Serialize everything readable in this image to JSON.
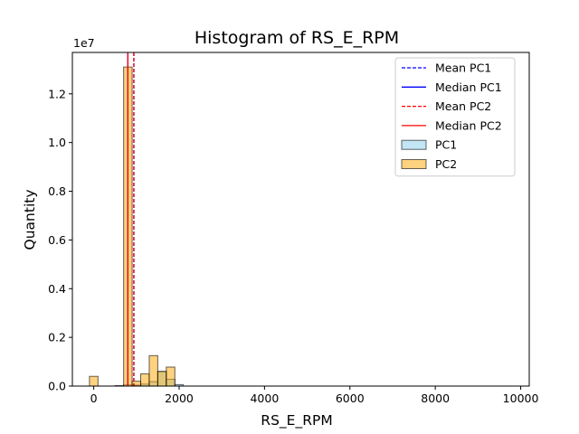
{
  "chart_data": {
    "type": "histogram",
    "title": "Histogram of RS_E_RPM",
    "xlabel": "RS_E_RPM",
    "ylabel": "Quantity",
    "y_offset_label": "1e7",
    "xlim": [
      -500,
      10200
    ],
    "ylim": [
      0,
      13700000
    ],
    "x_ticks": [
      0,
      2000,
      4000,
      6000,
      8000,
      10000
    ],
    "y_ticks": [
      0,
      2000000,
      4000000,
      6000000,
      8000000,
      10000000,
      12000000
    ],
    "y_tick_labels": [
      "0.0",
      "0.2",
      "0.4",
      "0.6",
      "0.8",
      "1.0",
      "1.2"
    ],
    "grid": false,
    "legend_position": "upper right",
    "legend": [
      {
        "label": "Mean PC1",
        "kind": "dashed-line",
        "color": "#0000ff"
      },
      {
        "label": "Median PC1",
        "kind": "solid-line",
        "color": "#0000ff"
      },
      {
        "label": "Mean PC2",
        "kind": "dashed-line",
        "color": "#ff0000"
      },
      {
        "label": "Median PC2",
        "kind": "solid-line",
        "color": "#ff0000"
      },
      {
        "label": "PC1",
        "kind": "patch",
        "color": "#87ceeb"
      },
      {
        "label": "PC2",
        "kind": "patch",
        "color": "#ffa500"
      }
    ],
    "bin_width": 200,
    "series": [
      {
        "name": "PC1",
        "color": "#87ceeb",
        "bins": [
          {
            "x0": 500,
            "count": 20000
          },
          {
            "x0": 700,
            "count": 50000
          },
          {
            "x0": 900,
            "count": 40000
          },
          {
            "x0": 1100,
            "count": 80000
          },
          {
            "x0": 1300,
            "count": 180000
          },
          {
            "x0": 1500,
            "count": 600000
          },
          {
            "x0": 1700,
            "count": 280000
          },
          {
            "x0": 1900,
            "count": 60000
          }
        ]
      },
      {
        "name": "PC2",
        "color": "#ffa500",
        "bins": [
          {
            "x0": -100,
            "count": 400000
          },
          {
            "x0": 700,
            "count": 13100000
          },
          {
            "x0": 900,
            "count": 200000
          },
          {
            "x0": 1100,
            "count": 500000
          },
          {
            "x0": 1300,
            "count": 1250000
          },
          {
            "x0": 1500,
            "count": 600000
          },
          {
            "x0": 1700,
            "count": 780000
          }
        ]
      }
    ],
    "reference_lines": [
      {
        "name": "Mean PC1",
        "x": 940,
        "color": "#0000ff",
        "style": "dashed"
      },
      {
        "name": "Median PC1",
        "x": 800,
        "color": "#0000ff",
        "style": "solid"
      },
      {
        "name": "Mean PC2",
        "x": 940,
        "color": "#ff0000",
        "style": "dashed"
      },
      {
        "name": "Median PC2",
        "x": 800,
        "color": "#ff0000",
        "style": "solid"
      }
    ]
  }
}
